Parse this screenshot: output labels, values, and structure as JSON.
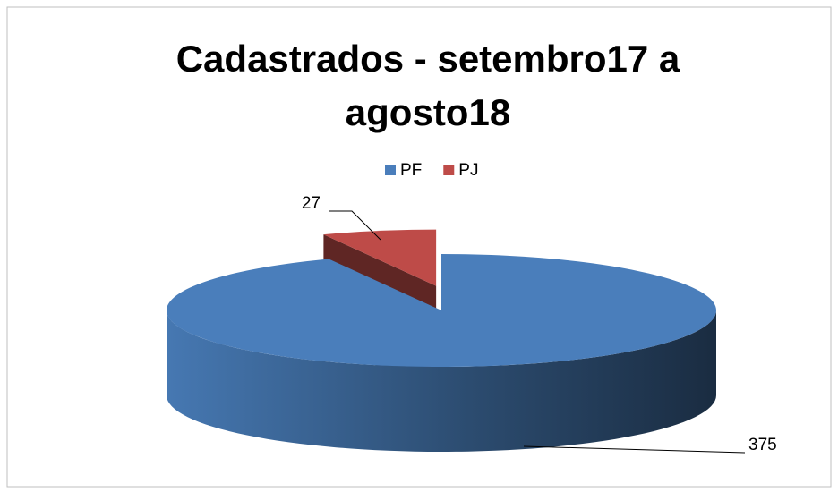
{
  "chart_data": {
    "type": "pie",
    "title": "Cadastrados - setembro17 a agosto18",
    "categories": [
      "PF",
      "PJ"
    ],
    "values": [
      375,
      27
    ],
    "colors": [
      "#4a7ebb",
      "#be4b48"
    ],
    "legend": "top",
    "exploded": [
      false,
      true
    ]
  }
}
